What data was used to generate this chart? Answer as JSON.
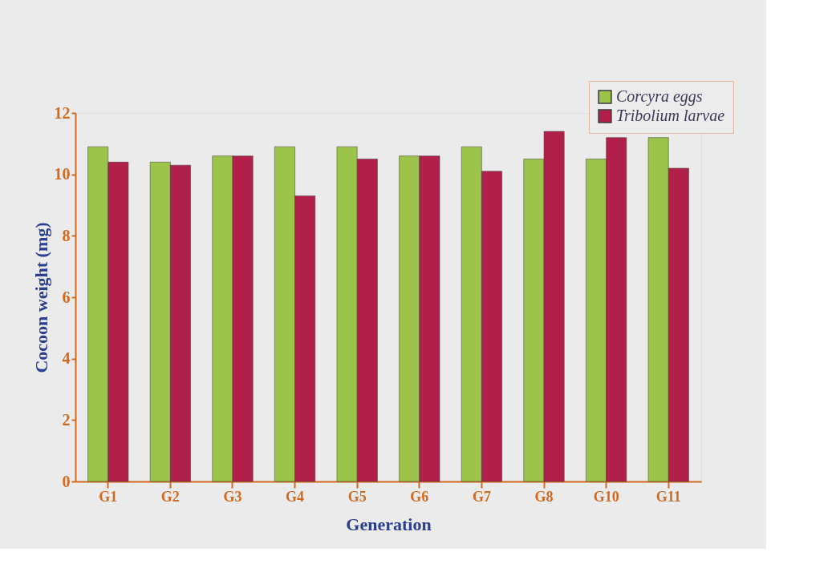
{
  "chart_data": {
    "type": "bar",
    "xlabel": "Generation",
    "ylabel": "Cocoon weight (mg)",
    "categories": [
      "G1",
      "G2",
      "G3",
      "G4",
      "G5",
      "G6",
      "G7",
      "G8",
      "G10",
      "G11"
    ],
    "series": [
      {
        "name": "Corcyra eggs",
        "color": "#9cc44a",
        "values": [
          10.9,
          10.4,
          10.6,
          10.9,
          10.9,
          10.6,
          10.9,
          10.5,
          10.5,
          11.2
        ]
      },
      {
        "name": "Tribolium larvae",
        "color": "#b0204a",
        "values": [
          10.4,
          10.3,
          10.6,
          9.3,
          10.5,
          10.6,
          10.1,
          11.4,
          11.2,
          10.2
        ]
      }
    ],
    "ylim": [
      0,
      12
    ],
    "yticks": [
      0,
      2,
      4,
      6,
      8,
      10,
      12
    ],
    "grid": false,
    "legend": "top right"
  }
}
